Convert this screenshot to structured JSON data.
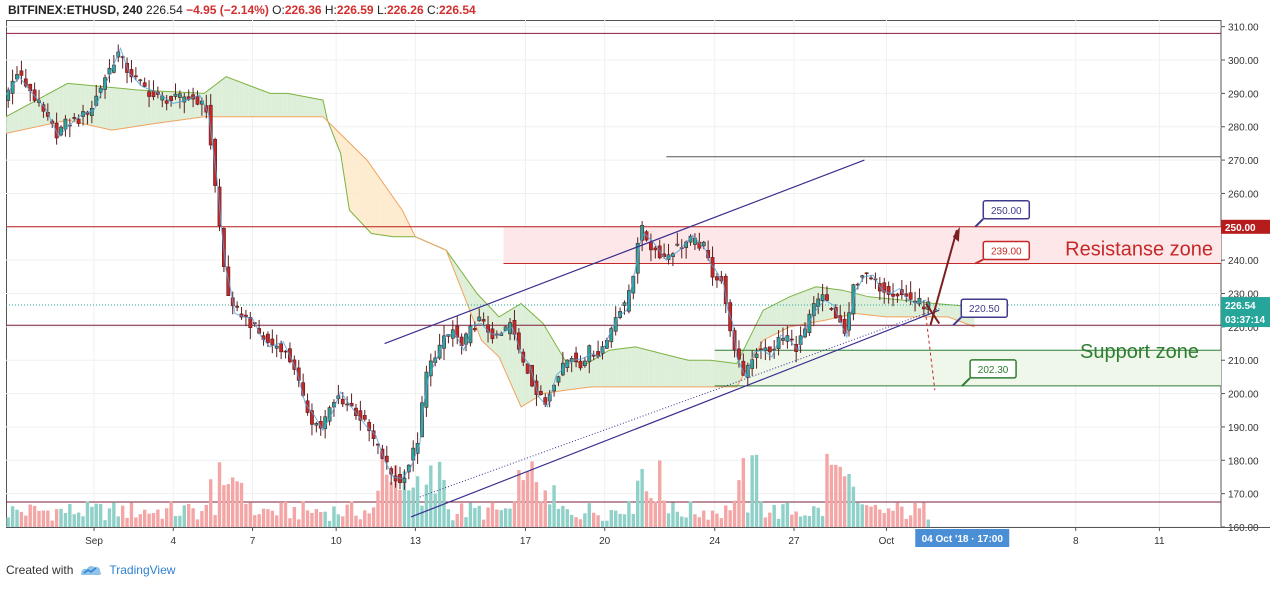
{
  "header": {
    "symbol": "BITFINEX:ETHUSD, 240",
    "last": "226.54",
    "change": "−4.95 (−2.14%)",
    "o_label": "O:",
    "o": "226.36",
    "h_label": "H:",
    "h": "226.59",
    "l_label": "L:",
    "l": "226.26",
    "c_label": "C:",
    "c": "226.54"
  },
  "footer": {
    "created_with": "Created with",
    "brand": "TradingView"
  },
  "colors": {
    "up": "#26a69a",
    "down": "#c62828",
    "resistance_fill": "#fde7e9",
    "support_fill": "#eef7ea",
    "cloud_green": "#d8ecd2",
    "cloud_orange": "#fde9c8"
  },
  "chart_data": {
    "type": "candlestick",
    "symbol": "BITFINEX:ETHUSD",
    "interval": "240",
    "ylim": [
      160,
      312
    ],
    "y_ticks": [
      160,
      170,
      180,
      190,
      200,
      210,
      220,
      230,
      240,
      250,
      260,
      270,
      280,
      290,
      300,
      310
    ],
    "x_ticks": [
      {
        "label": "Sep",
        "bar": 20
      },
      {
        "label": "4",
        "bar": 38
      },
      {
        "label": "7",
        "bar": 56
      },
      {
        "label": "10",
        "bar": 75
      },
      {
        "label": "13",
        "bar": 93
      },
      {
        "label": "17",
        "bar": 118
      },
      {
        "label": "20",
        "bar": 136
      },
      {
        "label": "24",
        "bar": 161
      },
      {
        "label": "27",
        "bar": 179
      },
      {
        "label": "Oct",
        "bar": 200
      },
      {
        "label": "8",
        "bar": 243
      },
      {
        "label": "11",
        "bar": 262
      }
    ],
    "total_bars": 276,
    "close_path": [
      [
        0,
        288
      ],
      [
        3,
        296
      ],
      [
        6,
        291
      ],
      [
        9,
        284
      ],
      [
        12,
        278
      ],
      [
        14,
        281
      ],
      [
        17,
        282
      ],
      [
        20,
        286
      ],
      [
        23,
        295
      ],
      [
        26,
        302
      ],
      [
        28,
        297
      ],
      [
        31,
        293
      ],
      [
        34,
        289
      ],
      [
        38,
        288
      ],
      [
        41,
        289
      ],
      [
        44,
        288
      ],
      [
        46,
        285
      ],
      [
        47,
        275
      ],
      [
        48,
        262
      ],
      [
        49,
        250
      ],
      [
        50,
        238
      ],
      [
        51,
        230
      ],
      [
        52,
        225
      ],
      [
        54,
        224
      ],
      [
        56,
        221
      ],
      [
        58,
        218
      ],
      [
        60,
        215
      ],
      [
        63,
        214
      ],
      [
        66,
        208
      ],
      [
        68,
        198
      ],
      [
        70,
        192
      ],
      [
        72,
        190
      ],
      [
        74,
        195
      ],
      [
        76,
        199
      ],
      [
        79,
        196
      ],
      [
        82,
        191
      ],
      [
        84,
        186
      ],
      [
        86,
        181
      ],
      [
        88,
        176
      ],
      [
        90,
        173
      ],
      [
        92,
        179
      ],
      [
        94,
        186
      ],
      [
        95,
        196
      ],
      [
        96,
        206
      ],
      [
        98,
        212
      ],
      [
        100,
        216
      ],
      [
        102,
        219
      ],
      [
        104,
        214
      ],
      [
        106,
        219
      ],
      [
        108,
        222
      ],
      [
        110,
        219
      ],
      [
        112,
        216
      ],
      [
        115,
        221
      ],
      [
        117,
        213
      ],
      [
        119,
        207
      ],
      [
        121,
        200
      ],
      [
        123,
        197
      ],
      [
        125,
        204
      ],
      [
        127,
        209
      ],
      [
        129,
        211
      ],
      [
        131,
        209
      ],
      [
        133,
        213
      ],
      [
        135,
        212
      ],
      [
        137,
        216
      ],
      [
        139,
        224
      ],
      [
        141,
        226
      ],
      [
        143,
        236
      ],
      [
        144,
        246
      ],
      [
        145,
        249
      ],
      [
        147,
        244
      ],
      [
        150,
        241
      ],
      [
        153,
        244
      ],
      [
        156,
        246
      ],
      [
        159,
        244
      ],
      [
        160,
        240
      ],
      [
        161,
        236
      ],
      [
        163,
        234
      ],
      [
        164,
        226
      ],
      [
        165,
        220
      ],
      [
        166,
        212
      ],
      [
        168,
        206
      ],
      [
        170,
        211
      ],
      [
        172,
        214
      ],
      [
        174,
        212
      ],
      [
        176,
        216
      ],
      [
        178,
        217
      ],
      [
        180,
        214
      ],
      [
        182,
        219
      ],
      [
        184,
        226
      ],
      [
        186,
        229
      ],
      [
        188,
        225
      ],
      [
        190,
        221
      ],
      [
        191,
        218
      ],
      [
        192,
        223
      ],
      [
        193,
        232
      ],
      [
        195,
        236
      ],
      [
        197,
        234
      ],
      [
        199,
        232
      ],
      [
        201,
        231
      ],
      [
        203,
        230
      ],
      [
        205,
        229
      ],
      [
        207,
        228
      ],
      [
        209,
        226.54
      ]
    ],
    "ichimoku": {
      "note_span_a": [
        [
          0,
          283
        ],
        [
          14,
          293
        ],
        [
          30,
          291
        ],
        [
          45,
          290
        ],
        [
          50,
          295
        ],
        [
          60,
          290
        ],
        [
          64,
          290
        ],
        [
          72,
          288
        ],
        [
          73,
          282
        ],
        [
          76,
          272
        ],
        [
          78,
          255
        ],
        [
          83,
          248
        ],
        [
          88,
          247
        ],
        [
          93,
          247
        ],
        [
          100,
          243
        ],
        [
          107,
          230
        ],
        [
          112,
          223
        ],
        [
          117,
          227
        ],
        [
          122,
          221
        ],
        [
          127,
          210
        ],
        [
          132,
          209
        ],
        [
          137,
          213
        ],
        [
          143,
          214
        ],
        [
          149,
          212
        ],
        [
          155,
          210
        ],
        [
          160,
          210
        ],
        [
          166,
          209
        ],
        [
          172,
          225
        ],
        [
          178,
          229
        ],
        [
          184,
          232
        ],
        [
          190,
          231
        ],
        [
          196,
          229
        ],
        [
          204,
          228
        ],
        [
          211,
          227
        ],
        [
          220,
          226
        ]
      ],
      "note_span_b": [
        [
          0,
          278
        ],
        [
          14,
          282
        ],
        [
          24,
          279
        ],
        [
          34,
          281
        ],
        [
          45,
          283
        ],
        [
          60,
          283
        ],
        [
          72,
          283
        ],
        [
          82,
          270
        ],
        [
          90,
          255
        ],
        [
          93,
          247
        ],
        [
          100,
          243
        ],
        [
          108,
          216
        ],
        [
          112,
          211
        ],
        [
          117,
          196
        ],
        [
          122,
          200
        ],
        [
          127,
          201
        ],
        [
          133,
          202
        ],
        [
          140,
          202
        ],
        [
          150,
          202
        ],
        [
          160,
          202
        ],
        [
          166,
          202
        ],
        [
          172,
          216
        ],
        [
          178,
          220
        ],
        [
          186,
          222
        ],
        [
          193,
          224
        ],
        [
          200,
          223
        ],
        [
          206,
          223
        ],
        [
          214,
          223
        ],
        [
          220,
          220
        ]
      ]
    },
    "trendlines": [
      {
        "from": [
          86,
          215
        ],
        "to": [
          195,
          270
        ]
      },
      {
        "from": [
          92,
          163
        ],
        "to": [
          212,
          225
        ]
      }
    ],
    "horizontal_lines": [
      308,
      271,
      250,
      239,
      220.5,
      213,
      202.3,
      167.5
    ],
    "zones": [
      {
        "name": "Resistanse zone",
        "from": 239,
        "to": 250
      },
      {
        "name": "Support zone",
        "from": 202.3,
        "to": 213
      }
    ],
    "price_labels": [
      {
        "text": "250.00",
        "value": 250,
        "color": "#3f3a8c"
      },
      {
        "text": "239.00",
        "value": 239,
        "color": "#c62828"
      },
      {
        "text": "220.50",
        "value": 220.5,
        "color": "#3f3a8c"
      },
      {
        "text": "202.30",
        "value": 202.3,
        "color": "#2e7d32"
      }
    ],
    "axis_labels": {
      "current_price": "226.54",
      "countdown": "03:37:14",
      "resistance_level": "250.00",
      "crosshair_time": "04 Oct '18 · 17:00"
    }
  }
}
